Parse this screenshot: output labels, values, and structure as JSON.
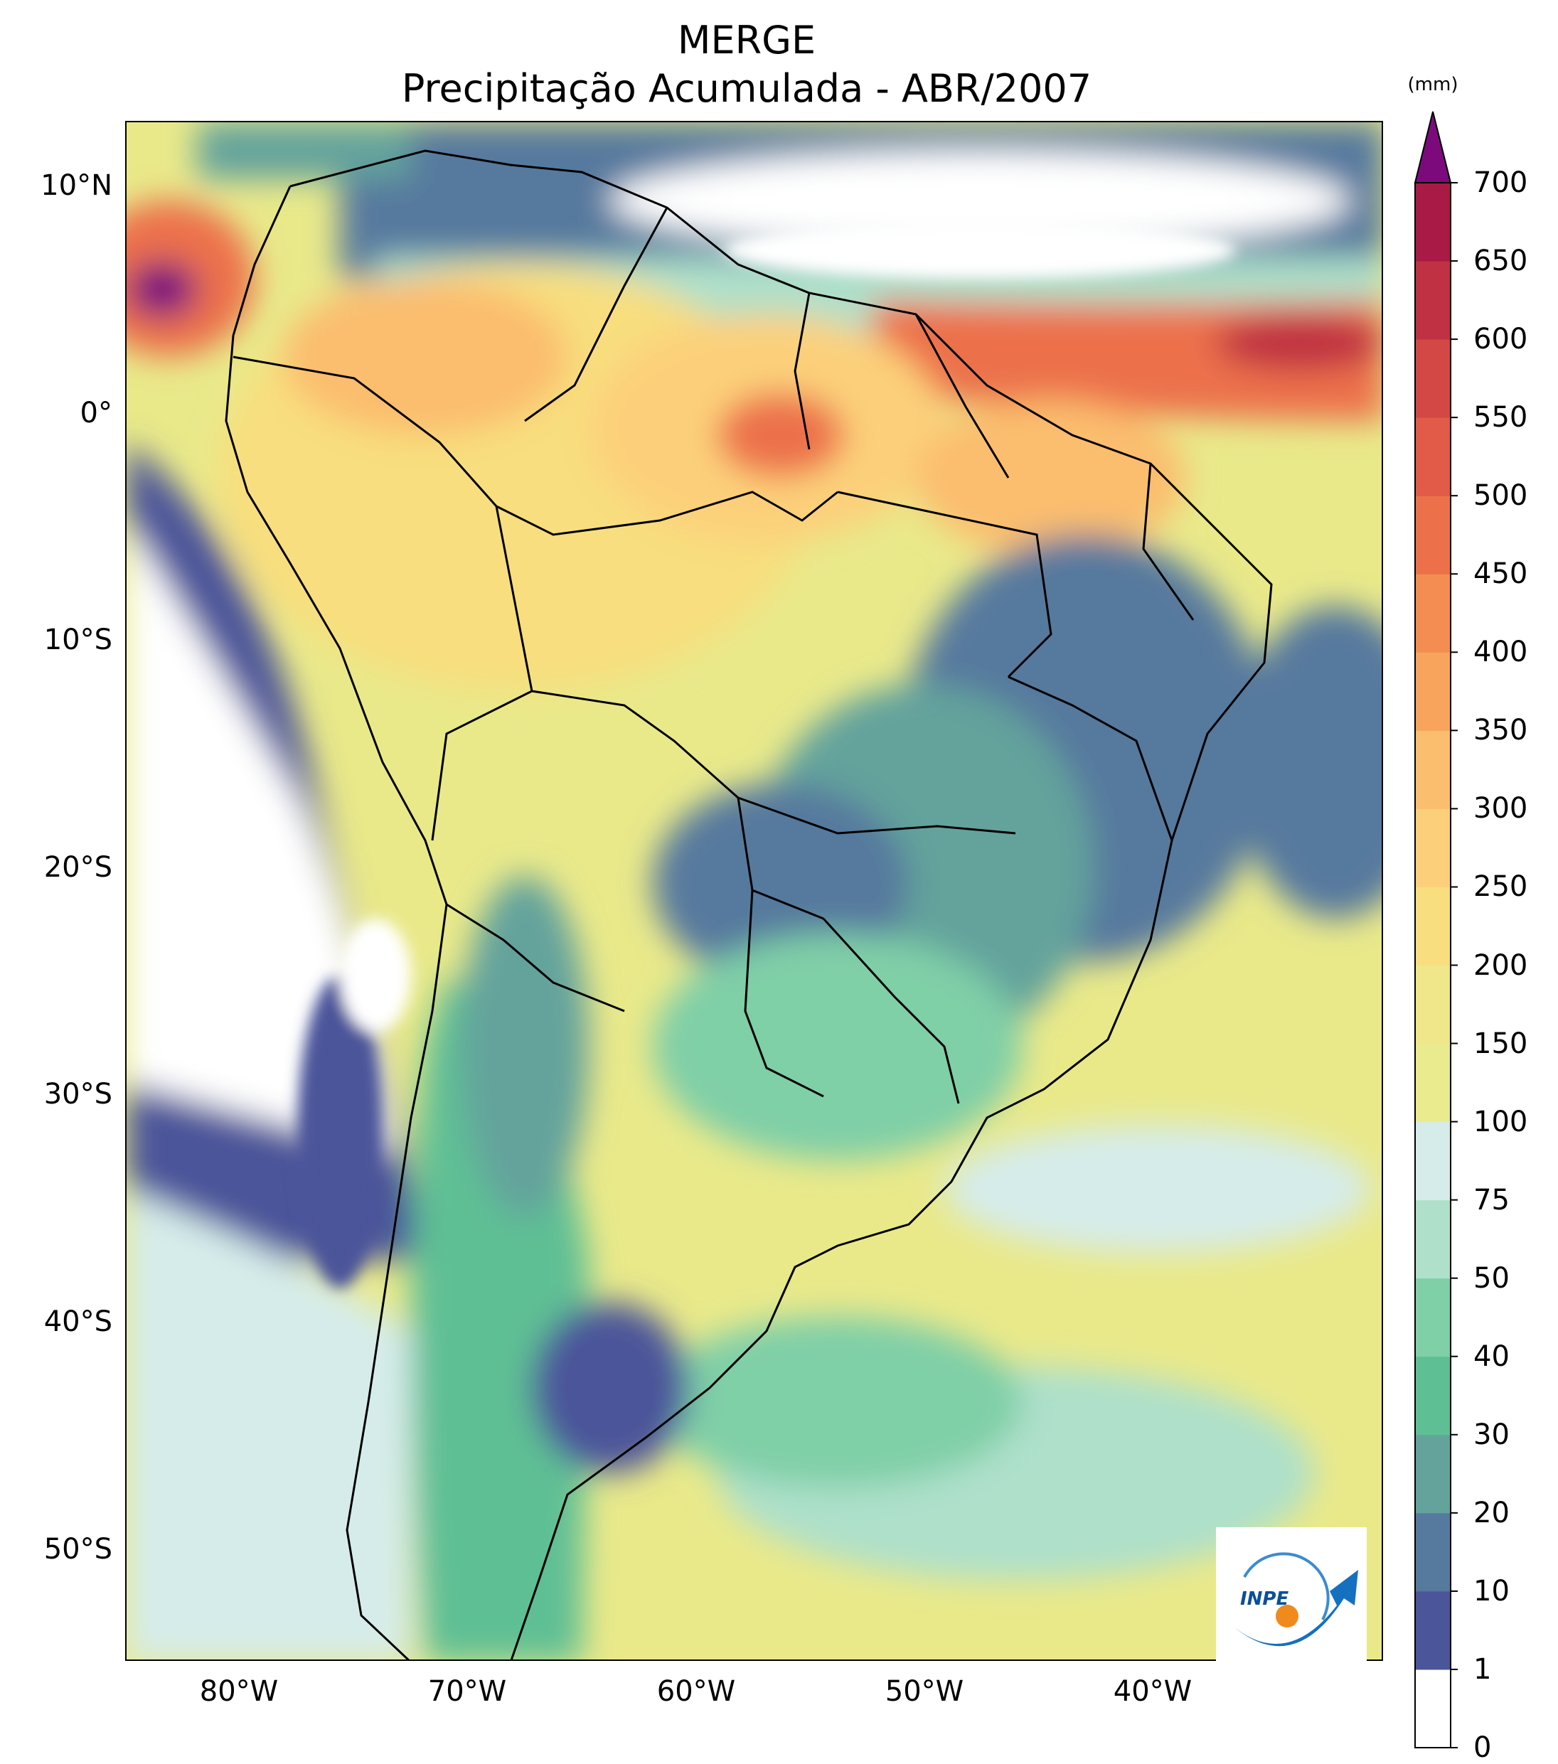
{
  "title": {
    "line1": "MERGE",
    "line2": "Precipitação Acumulada - ABR/2007"
  },
  "map": {
    "type": "precipitation-map",
    "extent": {
      "lon_min": -85,
      "lon_max": -30,
      "lat_min": -56,
      "lat_max": 12
    },
    "lat_ticks": [
      {
        "value": 10,
        "label": "10°N"
      },
      {
        "value": 0,
        "label": "0°"
      },
      {
        "value": -10,
        "label": "10°S"
      },
      {
        "value": -20,
        "label": "20°S"
      },
      {
        "value": -30,
        "label": "30°S"
      },
      {
        "value": -40,
        "label": "40°S"
      },
      {
        "value": -50,
        "label": "50°S"
      }
    ],
    "lon_ticks": [
      {
        "value": -80,
        "label": "80°W"
      },
      {
        "value": -70,
        "label": "70°W"
      },
      {
        "value": -60,
        "label": "60°W"
      },
      {
        "value": -50,
        "label": "50°W"
      },
      {
        "value": -40,
        "label": "40°W"
      }
    ],
    "color_regions": [
      {
        "name": "northern-colombia-max",
        "level": 700,
        "lat": 5,
        "lon": -83
      },
      {
        "name": "itcz-atlantic",
        "level": 550,
        "lat": 3,
        "lon": -36
      },
      {
        "name": "amazon-mouth",
        "level": 500,
        "lat": 0,
        "lon": -56
      },
      {
        "name": "amazon-basin",
        "level": 250
      },
      {
        "name": "northeast-brazil-dry",
        "level": 10
      },
      {
        "name": "chile-coast-dry",
        "level": 0
      },
      {
        "name": "patagonia",
        "level": 30
      }
    ]
  },
  "colorbar": {
    "unit": "(mm)",
    "levels": [
      0,
      1,
      10,
      20,
      30,
      40,
      50,
      75,
      100,
      150,
      200,
      250,
      300,
      350,
      400,
      450,
      500,
      550,
      600,
      650,
      700
    ],
    "labels": [
      "0",
      "1",
      "10",
      "20",
      "30",
      "40",
      "50",
      "75",
      "100",
      "150",
      "200",
      "250",
      "300",
      "350",
      "400",
      "450",
      "500",
      "550",
      "600",
      "650",
      "700"
    ],
    "colors": [
      "#ffffff",
      "#4b559a",
      "#56799e",
      "#63a39c",
      "#5ebf94",
      "#7fcfa7",
      "#aee0ca",
      "#d6ecea",
      "#eaea8f",
      "#f0e68a",
      "#f8de7e",
      "#fcd07a",
      "#fbbd6e",
      "#f8a45d",
      "#f48d52",
      "#ec714b",
      "#e15b48",
      "#d34745",
      "#c03143",
      "#a91b46"
    ],
    "extend_color": "#7d0a7d"
  },
  "logo": {
    "text": "INPE"
  }
}
